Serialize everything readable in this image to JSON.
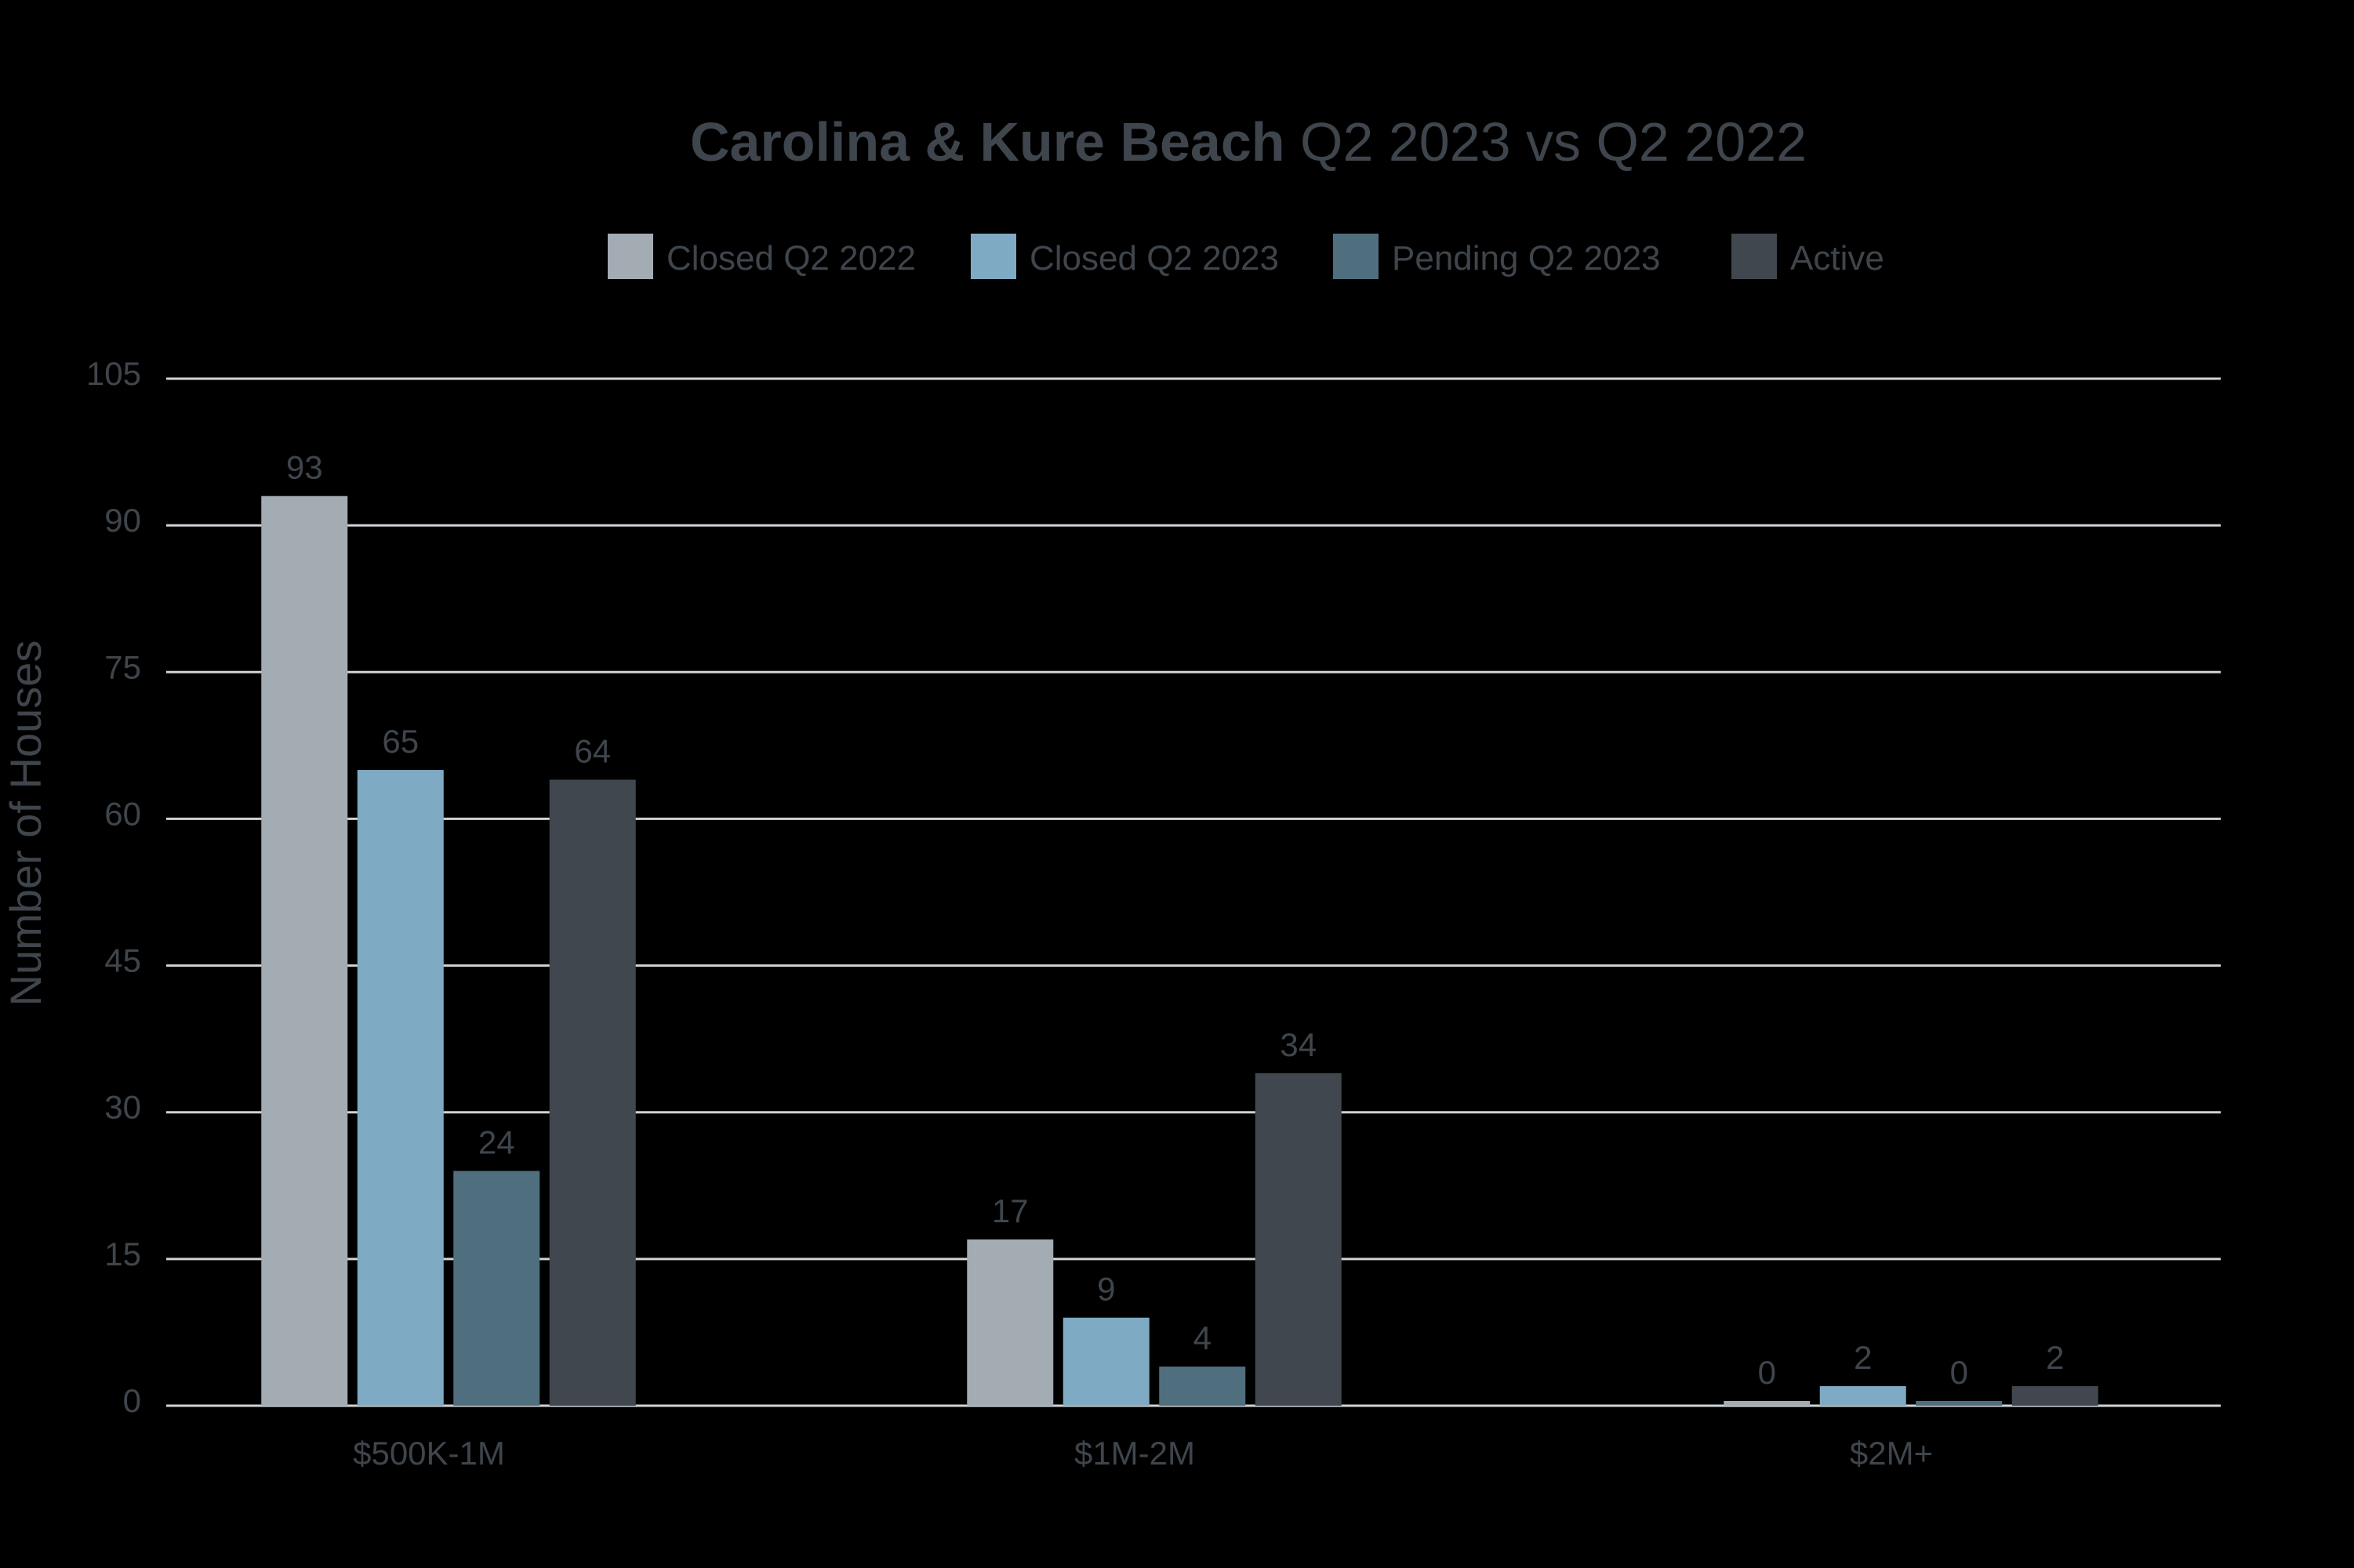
{
  "chart_data": {
    "type": "bar",
    "title_bold": "Carolina & Kure Beach",
    "title_rest": "Q2 2023 vs Q2 2022",
    "ylabel": "Number of Houses",
    "xlabel": "",
    "ylim": [
      0,
      105
    ],
    "yticks": [
      0,
      15,
      30,
      45,
      60,
      75,
      90,
      105
    ],
    "grid": true,
    "legend_position": "top",
    "categories": [
      "$500K-1M",
      "$1M-2M",
      "$2M+"
    ],
    "series": [
      {
        "name": "Closed Q2 2022",
        "color": "#a3abb3",
        "values": [
          93,
          17,
          0
        ]
      },
      {
        "name": "Closed Q2 2023",
        "color": "#7eaac3",
        "values": [
          65,
          9,
          2
        ]
      },
      {
        "name": "Pending Q2 2023",
        "color": "#4f6f7e",
        "values": [
          24,
          4,
          0
        ]
      },
      {
        "name": "Active",
        "color": "#40474f",
        "values": [
          64,
          34,
          2
        ]
      }
    ],
    "colors": {
      "background": "#000000",
      "text": "#3f454c",
      "gridline": "#d0d4d8"
    }
  }
}
